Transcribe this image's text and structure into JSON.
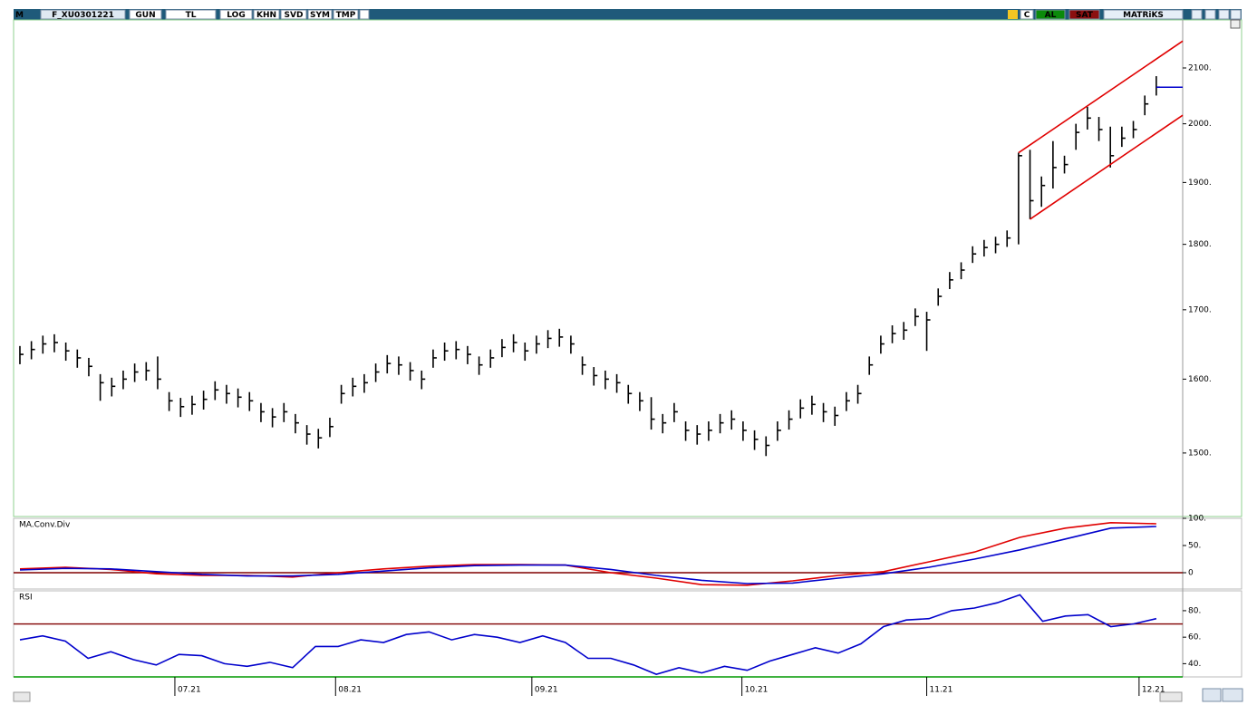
{
  "toolbar": {
    "left": [
      "M",
      "F_XU0301221",
      "GUN",
      "TL",
      "LOG",
      "KHN",
      "SVD",
      "SYM",
      "TMP"
    ],
    "right": [
      "C",
      "AL",
      "SAT",
      "MATRiKS"
    ]
  },
  "chart_data": [
    {
      "type": "ohlc",
      "log": true,
      "color": "#000000",
      "ylim": [
        1419,
        2190
      ],
      "yticks": [
        {
          "value": 2100,
          "label": "2100."
        },
        {
          "value": 2000,
          "label": "2000."
        },
        {
          "value": 1900,
          "label": "1900."
        },
        {
          "value": 1800,
          "label": "1800."
        },
        {
          "value": 1700,
          "label": "1700."
        },
        {
          "value": 1600,
          "label": "1600."
        },
        {
          "value": 1500,
          "label": "1500."
        }
      ],
      "xlim": [
        -0.55,
        101.3
      ],
      "xticks": [
        {
          "value": 13.5,
          "label": "07.21"
        },
        {
          "value": 27.5,
          "label": "08.21"
        },
        {
          "value": 44.6,
          "label": "09.21"
        },
        {
          "value": 62.9,
          "label": "10.21"
        },
        {
          "value": 79,
          "label": "11.21"
        },
        {
          "value": 97.5,
          "label": "12.21"
        }
      ],
      "high": [
        1647,
        1654,
        1662,
        1664,
        1652,
        1642,
        1630,
        1607,
        1602,
        1612,
        1622,
        1624,
        1632,
        1582,
        1574,
        1577,
        1584,
        1597,
        1592,
        1587,
        1582,
        1567,
        1560,
        1567,
        1552,
        1537,
        1532,
        1547,
        1592,
        1602,
        1607,
        1622,
        1634,
        1632,
        1624,
        1612,
        1642,
        1652,
        1654,
        1647,
        1632,
        1642,
        1657,
        1664,
        1652,
        1662,
        1670,
        1672,
        1662,
        1632,
        1617,
        1612,
        1607,
        1592,
        1582,
        1575,
        1552,
        1567,
        1542,
        1537,
        1542,
        1552,
        1557,
        1542,
        1530,
        1522,
        1542,
        1557,
        1572,
        1577,
        1567,
        1562,
        1582,
        1592,
        1632,
        1662,
        1677,
        1682,
        1702,
        1697,
        1732,
        1757,
        1772,
        1797,
        1807,
        1812,
        1822,
        1950,
        1955,
        1910,
        1970,
        1945,
        2000,
        2030,
        2012,
        1995,
        1995,
        2005,
        2050,
        2085
      ],
      "low": [
        1621,
        1628,
        1636,
        1638,
        1626,
        1616,
        1604,
        1570,
        1576,
        1586,
        1596,
        1598,
        1586,
        1556,
        1548,
        1551,
        1558,
        1571,
        1566,
        1561,
        1556,
        1541,
        1534,
        1541,
        1526,
        1511,
        1506,
        1521,
        1566,
        1576,
        1581,
        1596,
        1608,
        1606,
        1598,
        1586,
        1616,
        1626,
        1628,
        1621,
        1606,
        1616,
        1631,
        1638,
        1626,
        1636,
        1644,
        1646,
        1636,
        1606,
        1591,
        1586,
        1581,
        1566,
        1556,
        1531,
        1526,
        1541,
        1516,
        1511,
        1516,
        1526,
        1531,
        1516,
        1504,
        1496,
        1516,
        1531,
        1546,
        1551,
        1541,
        1536,
        1556,
        1566,
        1606,
        1636,
        1651,
        1656,
        1676,
        1640,
        1706,
        1731,
        1746,
        1771,
        1781,
        1786,
        1796,
        1800,
        1840,
        1860,
        1890,
        1915,
        1955,
        1990,
        1970,
        1925,
        1960,
        1975,
        2015,
        2050
      ],
      "close": [
        1635,
        1642,
        1650,
        1652,
        1640,
        1630,
        1618,
        1595,
        1590,
        1600,
        1610,
        1612,
        1600,
        1570,
        1562,
        1565,
        1572,
        1585,
        1580,
        1575,
        1570,
        1555,
        1548,
        1555,
        1540,
        1525,
        1520,
        1535,
        1580,
        1590,
        1595,
        1610,
        1622,
        1620,
        1612,
        1600,
        1630,
        1640,
        1642,
        1635,
        1620,
        1630,
        1645,
        1652,
        1640,
        1650,
        1658,
        1660,
        1650,
        1620,
        1605,
        1600,
        1595,
        1580,
        1570,
        1545,
        1540,
        1555,
        1530,
        1525,
        1530,
        1540,
        1545,
        1530,
        1518,
        1510,
        1530,
        1545,
        1560,
        1565,
        1555,
        1550,
        1570,
        1580,
        1620,
        1650,
        1665,
        1670,
        1690,
        1685,
        1720,
        1745,
        1760,
        1785,
        1795,
        1800,
        1810,
        1945,
        1870,
        1895,
        1925,
        1930,
        1985,
        2010,
        1990,
        1945,
        1975,
        1990,
        2035,
        2065
      ],
      "last_price_line": true,
      "last_price_color": "#0000cc",
      "trendlines": [
        {
          "color": "#e00000",
          "points": [
            [
              87,
              1950
            ],
            [
              101.3,
              2150
            ]
          ]
        },
        {
          "color": "#e00000",
          "points": [
            [
              88,
              1840
            ],
            [
              101.3,
              2015
            ]
          ]
        }
      ]
    },
    {
      "type": "line",
      "title": "MA.Conv.Div",
      "ylim": [
        -30,
        100
      ],
      "yticks": [
        {
          "value": 100,
          "label": "100."
        },
        {
          "value": 50,
          "label": "50."
        },
        0
      ],
      "levels": [
        {
          "value": 0,
          "color": "#800000"
        }
      ],
      "series": [
        {
          "color": "#e00000",
          "values": [
            7,
            10,
            6,
            -2,
            -5,
            -5,
            -8,
            0,
            7,
            12,
            15,
            15,
            14,
            0,
            -10,
            -22,
            -23,
            -15,
            -5,
            2,
            20,
            38,
            65,
            82,
            92,
            90
          ]
        },
        {
          "color": "#0000cc",
          "values": [
            5,
            8,
            7,
            2,
            -3,
            -6,
            -6,
            -3,
            3,
            9,
            13,
            14,
            14,
            6,
            -5,
            -14,
            -20,
            -19,
            -10,
            -2,
            10,
            25,
            42,
            62,
            82,
            85
          ]
        }
      ]
    },
    {
      "type": "line",
      "title": "RSI",
      "ylim": [
        30,
        95
      ],
      "yticks": [
        {
          "value": 80,
          "label": "80."
        },
        {
          "value": 60,
          "label": "60."
        },
        {
          "value": 40,
          "label": "40."
        }
      ],
      "levels": [
        {
          "value": 70,
          "color": "#800000"
        },
        {
          "value": 30,
          "color": "#009900"
        }
      ],
      "series": [
        {
          "color": "#0000cc",
          "values": [
            58,
            61,
            57,
            44,
            49,
            43,
            39,
            47,
            46,
            40,
            38,
            41,
            37,
            53,
            53,
            58,
            56,
            62,
            64,
            58,
            62,
            60,
            56,
            61,
            56,
            44,
            44,
            39,
            32,
            37,
            33,
            38,
            35,
            42,
            47,
            52,
            48,
            55,
            68,
            73,
            74,
            80,
            82,
            86,
            92,
            72,
            76,
            77,
            68,
            70,
            74
          ]
        }
      ]
    }
  ]
}
